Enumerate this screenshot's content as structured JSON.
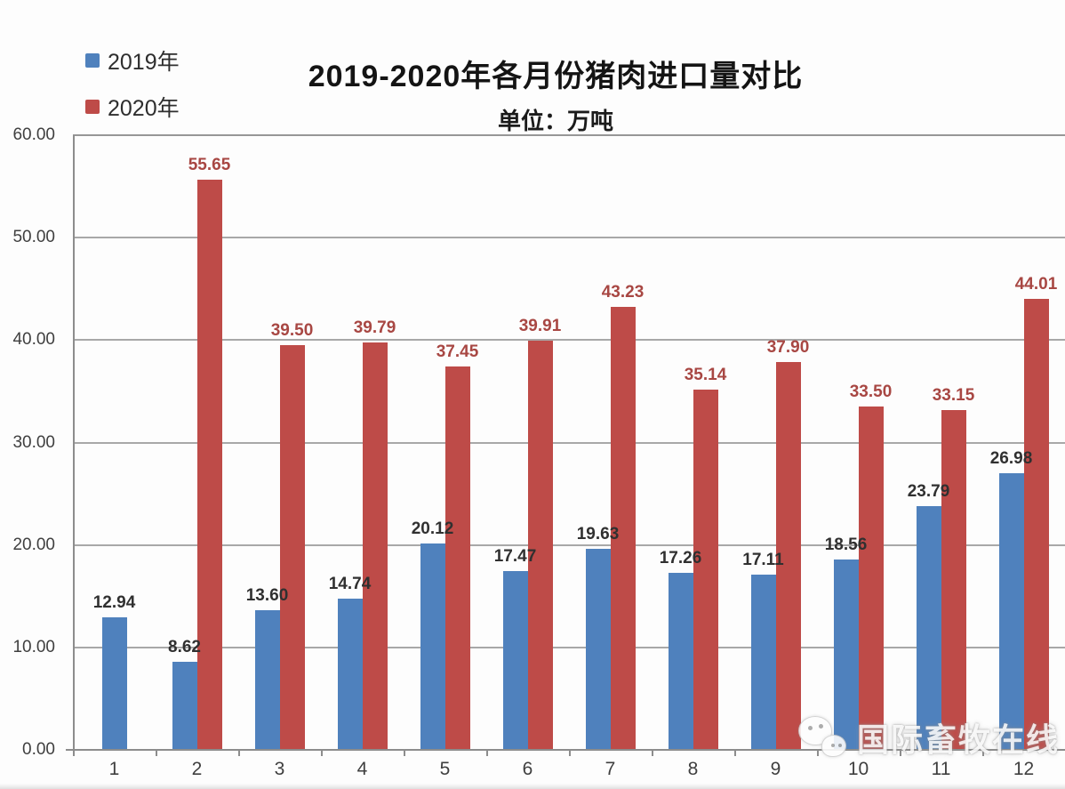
{
  "chart_data": {
    "type": "bar",
    "title": "2019-2020年各月份猪肉进口量对比",
    "subtitle": "单位：万吨",
    "categories": [
      "1",
      "2",
      "3",
      "4",
      "5",
      "6",
      "7",
      "8",
      "9",
      "10",
      "11",
      "12"
    ],
    "series": [
      {
        "name": "2019年",
        "color": "#4F81BD",
        "label_color": "#303030",
        "values": [
          12.94,
          8.62,
          13.6,
          14.74,
          20.12,
          17.47,
          19.63,
          17.26,
          17.11,
          18.56,
          23.79,
          26.98
        ],
        "labels": [
          "12.94",
          "8.62",
          "13.60",
          "14.74",
          "20.12",
          "17.47",
          "19.63",
          "17.26",
          "17.11",
          "18.56",
          "23.79",
          "26.98"
        ]
      },
      {
        "name": "2020年",
        "color": "#BE4B48",
        "label_color": "#A84743",
        "values": [
          null,
          55.65,
          39.5,
          39.79,
          37.45,
          39.91,
          43.23,
          35.14,
          37.9,
          33.5,
          33.15,
          44.01
        ],
        "labels": [
          null,
          "55.65",
          "39.50",
          "39.79",
          "37.45",
          "39.91",
          "43.23",
          "35.14",
          "37.90",
          "33.50",
          "33.15",
          "44.01"
        ]
      }
    ],
    "ylim": [
      0,
      60
    ],
    "ytick_step": 10,
    "yticks": [
      "60.00",
      "50.00",
      "40.00",
      "30.00",
      "20.00",
      "10.00",
      "0.00"
    ],
    "grid": true,
    "legend_position": "top-left"
  },
  "legend": {
    "items": [
      {
        "label": "2019年",
        "color": "#4F81BD"
      },
      {
        "label": "2020年",
        "color": "#BE4B48"
      }
    ]
  },
  "watermark": {
    "text": "国际畜牧在线",
    "icon": "wechat-icon"
  },
  "colors": {
    "series_2019": "#4F81BD",
    "series_2020": "#BE4B48",
    "gridline": "#a8a8a8",
    "axis_text": "#3f3f3f",
    "title_text": "#141414"
  }
}
